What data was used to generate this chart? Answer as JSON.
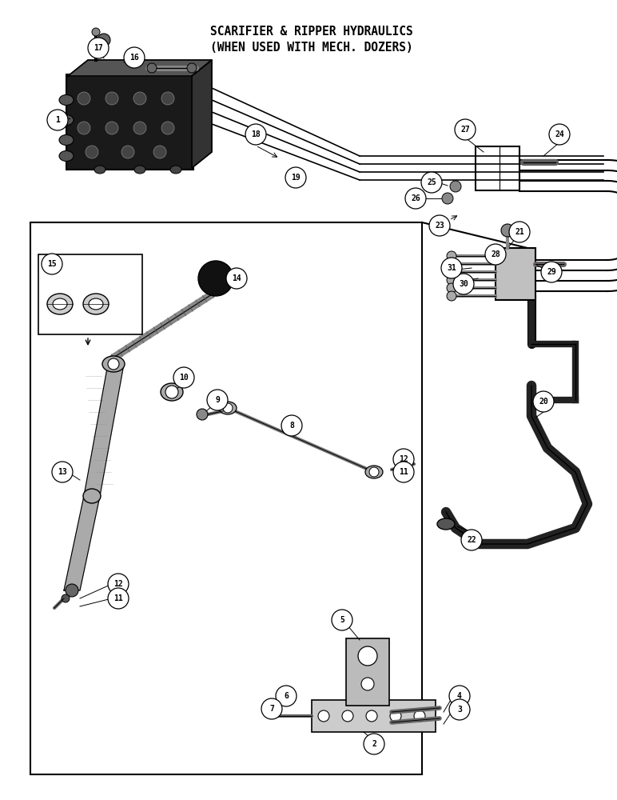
{
  "title_line1": "SCARIFIER & RIPPER HYDRAULICS",
  "title_line2": "(WHEN USED WITH MECH. DOZERS)",
  "bg_color": "#ffffff",
  "line_color": "#000000",
  "title_fontsize": 10.5,
  "callout_r": 0.017,
  "callout_fs": 7
}
